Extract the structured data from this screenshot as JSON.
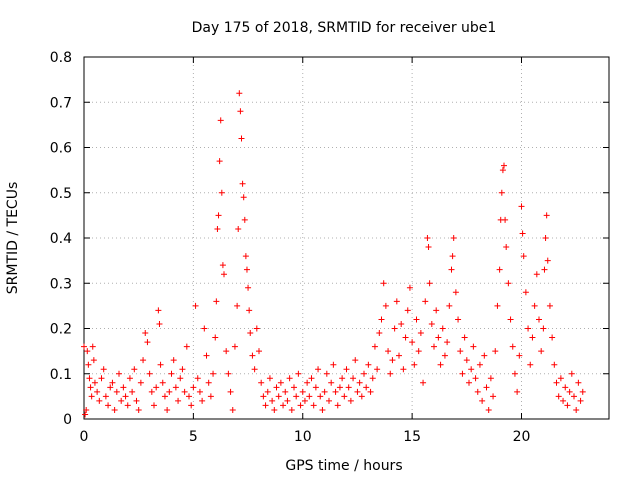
{
  "chart_data": {
    "type": "scatter",
    "title": "Day 175 of 2018, SRMTID for receiver ube1",
    "xlabel": "GPS time / hours",
    "ylabel": "SRMTID / TECUs",
    "xlim": [
      0,
      24
    ],
    "ylim": [
      0,
      0.8
    ],
    "xticks": [
      0,
      5,
      10,
      15,
      20
    ],
    "xtick_labels": [
      "0",
      "5",
      "10",
      "15",
      "20"
    ],
    "yticks": [
      0,
      0.1,
      0.2,
      0.3,
      0.4,
      0.5,
      0.6,
      0.7,
      0.8
    ],
    "ytick_labels": [
      "0",
      "0.1",
      "0.2",
      "0.3",
      "0.4",
      "0.5",
      "0.6",
      "0.7",
      "0.8"
    ],
    "grid": true,
    "marker": "+",
    "series": [
      {
        "name": "SRMTID",
        "color": "#ff0000",
        "points": [
          [
            0.0,
            0.16
          ],
          [
            0.05,
            0.01
          ],
          [
            0.1,
            0.02
          ],
          [
            0.15,
            0.15
          ],
          [
            0.2,
            0.12
          ],
          [
            0.25,
            0.09
          ],
          [
            0.3,
            0.07
          ],
          [
            0.35,
            0.05
          ],
          [
            0.4,
            0.16
          ],
          [
            0.45,
            0.13
          ],
          [
            0.5,
            0.08
          ],
          [
            0.6,
            0.06
          ],
          [
            0.7,
            0.04
          ],
          [
            0.8,
            0.09
          ],
          [
            0.9,
            0.11
          ],
          [
            1.0,
            0.05
          ],
          [
            1.1,
            0.03
          ],
          [
            1.2,
            0.07
          ],
          [
            1.3,
            0.08
          ],
          [
            1.4,
            0.02
          ],
          [
            1.5,
            0.06
          ],
          [
            1.6,
            0.1
          ],
          [
            1.7,
            0.04
          ],
          [
            1.8,
            0.07
          ],
          [
            1.9,
            0.05
          ],
          [
            2.0,
            0.03
          ],
          [
            2.1,
            0.09
          ],
          [
            2.2,
            0.06
          ],
          [
            2.3,
            0.11
          ],
          [
            2.4,
            0.04
          ],
          [
            2.5,
            0.02
          ],
          [
            2.6,
            0.08
          ],
          [
            2.7,
            0.13
          ],
          [
            2.8,
            0.19
          ],
          [
            2.9,
            0.17
          ],
          [
            3.0,
            0.1
          ],
          [
            3.1,
            0.06
          ],
          [
            3.2,
            0.03
          ],
          [
            3.3,
            0.07
          ],
          [
            3.4,
            0.24
          ],
          [
            3.45,
            0.21
          ],
          [
            3.5,
            0.12
          ],
          [
            3.6,
            0.08
          ],
          [
            3.7,
            0.05
          ],
          [
            3.8,
            0.02
          ],
          [
            3.9,
            0.06
          ],
          [
            4.0,
            0.1
          ],
          [
            4.1,
            0.13
          ],
          [
            4.2,
            0.07
          ],
          [
            4.3,
            0.04
          ],
          [
            4.4,
            0.09
          ],
          [
            4.5,
            0.11
          ],
          [
            4.6,
            0.06
          ],
          [
            4.7,
            0.16
          ],
          [
            4.8,
            0.05
          ],
          [
            4.9,
            0.03
          ],
          [
            5.0,
            0.07
          ],
          [
            5.1,
            0.25
          ],
          [
            5.2,
            0.09
          ],
          [
            5.3,
            0.06
          ],
          [
            5.4,
            0.04
          ],
          [
            5.5,
            0.2
          ],
          [
            5.6,
            0.14
          ],
          [
            5.7,
            0.08
          ],
          [
            5.8,
            0.05
          ],
          [
            5.9,
            0.1
          ],
          [
            6.0,
            0.18
          ],
          [
            6.05,
            0.26
          ],
          [
            6.1,
            0.42
          ],
          [
            6.15,
            0.45
          ],
          [
            6.2,
            0.57
          ],
          [
            6.25,
            0.66
          ],
          [
            6.3,
            0.5
          ],
          [
            6.35,
            0.34
          ],
          [
            6.4,
            0.32
          ],
          [
            6.5,
            0.15
          ],
          [
            6.6,
            0.1
          ],
          [
            6.7,
            0.06
          ],
          [
            6.8,
            0.02
          ],
          [
            6.9,
            0.16
          ],
          [
            7.0,
            0.25
          ],
          [
            7.05,
            0.42
          ],
          [
            7.1,
            0.72
          ],
          [
            7.15,
            0.68
          ],
          [
            7.2,
            0.62
          ],
          [
            7.25,
            0.52
          ],
          [
            7.3,
            0.49
          ],
          [
            7.35,
            0.44
          ],
          [
            7.4,
            0.36
          ],
          [
            7.45,
            0.33
          ],
          [
            7.5,
            0.29
          ],
          [
            7.55,
            0.24
          ],
          [
            7.6,
            0.19
          ],
          [
            7.7,
            0.14
          ],
          [
            7.8,
            0.11
          ],
          [
            7.9,
            0.2
          ],
          [
            8.0,
            0.15
          ],
          [
            8.1,
            0.08
          ],
          [
            8.2,
            0.05
          ],
          [
            8.3,
            0.03
          ],
          [
            8.4,
            0.06
          ],
          [
            8.5,
            0.09
          ],
          [
            8.6,
            0.04
          ],
          [
            8.7,
            0.02
          ],
          [
            8.8,
            0.07
          ],
          [
            8.9,
            0.05
          ],
          [
            9.0,
            0.08
          ],
          [
            9.1,
            0.03
          ],
          [
            9.2,
            0.06
          ],
          [
            9.3,
            0.04
          ],
          [
            9.4,
            0.09
          ],
          [
            9.5,
            0.02
          ],
          [
            9.6,
            0.07
          ],
          [
            9.7,
            0.05
          ],
          [
            9.8,
            0.1
          ],
          [
            9.9,
            0.03
          ],
          [
            10.0,
            0.06
          ],
          [
            10.1,
            0.04
          ],
          [
            10.2,
            0.08
          ],
          [
            10.3,
            0.05
          ],
          [
            10.4,
            0.09
          ],
          [
            10.5,
            0.03
          ],
          [
            10.6,
            0.07
          ],
          [
            10.7,
            0.11
          ],
          [
            10.8,
            0.05
          ],
          [
            10.9,
            0.02
          ],
          [
            11.0,
            0.06
          ],
          [
            11.1,
            0.1
          ],
          [
            11.2,
            0.04
          ],
          [
            11.3,
            0.08
          ],
          [
            11.4,
            0.12
          ],
          [
            11.5,
            0.06
          ],
          [
            11.6,
            0.03
          ],
          [
            11.7,
            0.07
          ],
          [
            11.8,
            0.09
          ],
          [
            11.9,
            0.05
          ],
          [
            12.0,
            0.11
          ],
          [
            12.1,
            0.07
          ],
          [
            12.2,
            0.04
          ],
          [
            12.3,
            0.09
          ],
          [
            12.4,
            0.13
          ],
          [
            12.5,
            0.06
          ],
          [
            12.6,
            0.08
          ],
          [
            12.7,
            0.05
          ],
          [
            12.8,
            0.1
          ],
          [
            12.9,
            0.07
          ],
          [
            13.0,
            0.12
          ],
          [
            13.1,
            0.06
          ],
          [
            13.2,
            0.09
          ],
          [
            13.3,
            0.16
          ],
          [
            13.4,
            0.11
          ],
          [
            13.5,
            0.19
          ],
          [
            13.6,
            0.22
          ],
          [
            13.7,
            0.3
          ],
          [
            13.8,
            0.25
          ],
          [
            13.9,
            0.15
          ],
          [
            14.0,
            0.1
          ],
          [
            14.1,
            0.13
          ],
          [
            14.2,
            0.2
          ],
          [
            14.3,
            0.26
          ],
          [
            14.4,
            0.14
          ],
          [
            14.5,
            0.21
          ],
          [
            14.6,
            0.11
          ],
          [
            14.7,
            0.18
          ],
          [
            14.8,
            0.24
          ],
          [
            14.9,
            0.29
          ],
          [
            15.0,
            0.17
          ],
          [
            15.1,
            0.12
          ],
          [
            15.2,
            0.22
          ],
          [
            15.3,
            0.15
          ],
          [
            15.4,
            0.19
          ],
          [
            15.5,
            0.08
          ],
          [
            15.6,
            0.26
          ],
          [
            15.7,
            0.4
          ],
          [
            15.75,
            0.38
          ],
          [
            15.8,
            0.3
          ],
          [
            15.9,
            0.21
          ],
          [
            16.0,
            0.16
          ],
          [
            16.1,
            0.24
          ],
          [
            16.2,
            0.18
          ],
          [
            16.3,
            0.12
          ],
          [
            16.4,
            0.2
          ],
          [
            16.5,
            0.14
          ],
          [
            16.6,
            0.17
          ],
          [
            16.7,
            0.25
          ],
          [
            16.8,
            0.33
          ],
          [
            16.85,
            0.36
          ],
          [
            16.9,
            0.4
          ],
          [
            17.0,
            0.28
          ],
          [
            17.1,
            0.22
          ],
          [
            17.2,
            0.15
          ],
          [
            17.3,
            0.1
          ],
          [
            17.4,
            0.18
          ],
          [
            17.5,
            0.13
          ],
          [
            17.6,
            0.08
          ],
          [
            17.7,
            0.11
          ],
          [
            17.8,
            0.16
          ],
          [
            17.9,
            0.09
          ],
          [
            18.0,
            0.06
          ],
          [
            18.1,
            0.12
          ],
          [
            18.2,
            0.04
          ],
          [
            18.3,
            0.14
          ],
          [
            18.4,
            0.07
          ],
          [
            18.5,
            0.02
          ],
          [
            18.6,
            0.09
          ],
          [
            18.7,
            0.05
          ],
          [
            18.8,
            0.15
          ],
          [
            18.9,
            0.25
          ],
          [
            19.0,
            0.33
          ],
          [
            19.05,
            0.44
          ],
          [
            19.1,
            0.5
          ],
          [
            19.15,
            0.55
          ],
          [
            19.2,
            0.56
          ],
          [
            19.25,
            0.44
          ],
          [
            19.3,
            0.38
          ],
          [
            19.4,
            0.3
          ],
          [
            19.5,
            0.22
          ],
          [
            19.6,
            0.16
          ],
          [
            19.7,
            0.1
          ],
          [
            19.8,
            0.06
          ],
          [
            19.9,
            0.14
          ],
          [
            20.0,
            0.47
          ],
          [
            20.05,
            0.41
          ],
          [
            20.1,
            0.36
          ],
          [
            20.2,
            0.28
          ],
          [
            20.3,
            0.2
          ],
          [
            20.4,
            0.12
          ],
          [
            20.5,
            0.18
          ],
          [
            20.6,
            0.25
          ],
          [
            20.7,
            0.32
          ],
          [
            20.8,
            0.22
          ],
          [
            20.9,
            0.15
          ],
          [
            21.0,
            0.2
          ],
          [
            21.05,
            0.33
          ],
          [
            21.1,
            0.4
          ],
          [
            21.15,
            0.45
          ],
          [
            21.2,
            0.35
          ],
          [
            21.3,
            0.25
          ],
          [
            21.4,
            0.18
          ],
          [
            21.5,
            0.12
          ],
          [
            21.6,
            0.08
          ],
          [
            21.7,
            0.05
          ],
          [
            21.8,
            0.09
          ],
          [
            21.9,
            0.04
          ],
          [
            22.0,
            0.07
          ],
          [
            22.1,
            0.03
          ],
          [
            22.2,
            0.06
          ],
          [
            22.3,
            0.1
          ],
          [
            22.4,
            0.05
          ],
          [
            22.5,
            0.02
          ],
          [
            22.6,
            0.08
          ],
          [
            22.7,
            0.04
          ],
          [
            22.8,
            0.06
          ]
        ]
      }
    ]
  }
}
